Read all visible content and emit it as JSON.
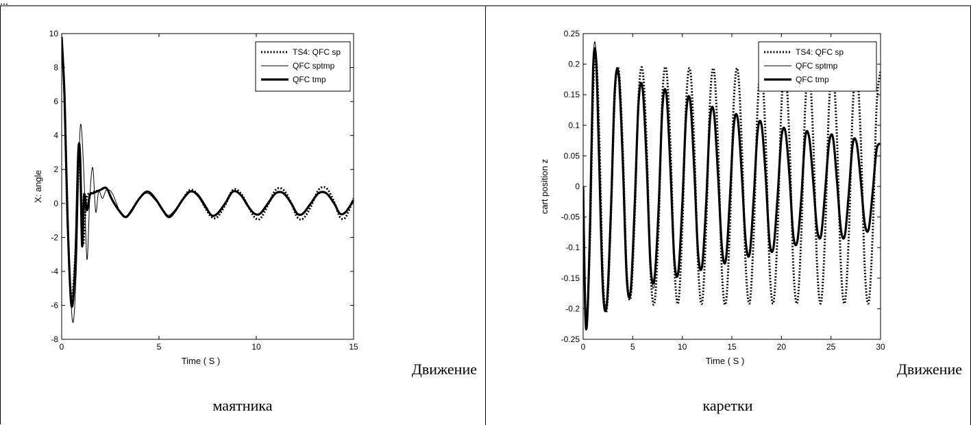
{
  "header_fragment": "...",
  "captions": {
    "left_line1": "Движение",
    "left_line2": "маятника",
    "right_line1": "Движение",
    "right_line2": "каретки"
  },
  "colors": {
    "line": "#000000",
    "background": "#ffffff"
  },
  "chart_data": [
    {
      "type": "line",
      "title": "",
      "xlabel": "Time ( S )",
      "ylabel": "X: angle",
      "xlim": [
        0,
        15
      ],
      "ylim": [
        -8,
        10
      ],
      "xticks": [
        0,
        5,
        10,
        15
      ],
      "yticks": [
        -8,
        -6,
        -4,
        -2,
        0,
        2,
        4,
        6,
        8,
        10
      ],
      "grid": false,
      "legend_position": "top-right",
      "series": [
        {
          "name": "TS4: QFC sp",
          "style": "dotted",
          "x": [
            0,
            0.15,
            0.3,
            0.5,
            0.7,
            0.9,
            1.0,
            1.1,
            1.2,
            1.3,
            1.5,
            1.7,
            2.0,
            2.3,
            2.6,
            3.0,
            3.3,
            3.6,
            4.0,
            4.4,
            4.8,
            5.2,
            5.5,
            5.8,
            6.2,
            6.6,
            7.0,
            7.4,
            7.7,
            8.0,
            8.4,
            8.8,
            9.2,
            9.6,
            9.9,
            10.2,
            10.6,
            11.0,
            11.4,
            11.8,
            12.1,
            12.4,
            12.8,
            13.2,
            13.6,
            14.0,
            14.3,
            14.6,
            15.0
          ],
          "y": [
            9.8,
            6.0,
            -1.0,
            -5.5,
            -3.0,
            2.8,
            0.5,
            -2.4,
            -0.8,
            0.4,
            0.6,
            0.7,
            0.8,
            0.9,
            0.2,
            -0.5,
            -0.8,
            -0.4,
            0.3,
            0.7,
            0.3,
            -0.4,
            -0.8,
            -0.5,
            0.2,
            0.8,
            0.5,
            -0.3,
            -0.8,
            -0.8,
            -0.1,
            0.8,
            0.6,
            -0.2,
            -0.8,
            -0.9,
            -0.1,
            0.8,
            0.8,
            0.0,
            -0.8,
            -0.9,
            -0.2,
            0.8,
            0.9,
            0.1,
            -0.8,
            -0.8,
            0.3
          ]
        },
        {
          "name": "QFC sptmp",
          "style": "thin",
          "x": [
            0,
            0.15,
            0.3,
            0.55,
            0.75,
            0.9,
            1.0,
            1.15,
            1.3,
            1.45,
            1.6,
            1.75,
            1.9,
            2.1,
            2.3,
            2.6,
            3.0,
            3.3,
            3.6,
            4.0,
            4.4,
            4.8,
            5.2,
            5.5,
            5.8,
            6.2,
            6.6,
            7.0,
            7.4,
            7.7,
            8.0,
            8.4,
            8.8,
            9.2,
            9.6,
            9.9,
            10.2,
            10.6,
            11.0,
            11.4,
            11.8,
            12.1,
            12.4,
            12.8,
            13.2,
            13.6,
            14.0,
            14.3,
            14.6,
            15.0
          ],
          "y": [
            9.9,
            6.5,
            -0.5,
            -6.9,
            -4.0,
            3.0,
            4.6,
            1.5,
            -3.3,
            0.5,
            2.1,
            -0.5,
            0.7,
            0.3,
            0.8,
            0.6,
            -0.5,
            -0.8,
            -0.5,
            0.3,
            0.6,
            0.2,
            -0.4,
            -0.7,
            -0.4,
            0.2,
            0.7,
            0.4,
            -0.3,
            -0.7,
            -0.6,
            0.0,
            0.7,
            0.5,
            -0.2,
            -0.6,
            -0.6,
            0.0,
            0.6,
            0.6,
            0.0,
            -0.6,
            -0.6,
            0.0,
            0.6,
            0.6,
            0.0,
            -0.6,
            -0.5,
            0.2
          ]
        },
        {
          "name": "QFC tmp",
          "style": "thick",
          "x": [
            0,
            0.15,
            0.3,
            0.5,
            0.7,
            0.85,
            0.95,
            1.05,
            1.15,
            1.3,
            1.45,
            1.6,
            1.8,
            2.0,
            2.3,
            2.6,
            3.0,
            3.3,
            3.6,
            4.0,
            4.4,
            4.8,
            5.2,
            5.5,
            5.8,
            6.2,
            6.6,
            7.0,
            7.4,
            7.7,
            8.0,
            8.4,
            8.8,
            9.2,
            9.6,
            9.9,
            10.2,
            10.6,
            11.0,
            11.4,
            11.8,
            12.1,
            12.4,
            12.8,
            13.2,
            13.6,
            14.0,
            14.3,
            14.6,
            15.0
          ],
          "y": [
            9.8,
            6.2,
            -0.8,
            -6.0,
            -3.5,
            2.9,
            2.7,
            -2.5,
            0.5,
            -0.4,
            0.5,
            0.6,
            0.7,
            0.8,
            0.9,
            0.2,
            -0.5,
            -0.8,
            -0.4,
            0.3,
            0.7,
            0.3,
            -0.4,
            -0.8,
            -0.5,
            0.2,
            0.7,
            0.5,
            -0.2,
            -0.7,
            -0.6,
            0.0,
            0.7,
            0.5,
            -0.2,
            -0.6,
            -0.6,
            0.0,
            0.6,
            0.6,
            0.0,
            -0.6,
            -0.6,
            0.0,
            0.6,
            0.6,
            0.0,
            -0.6,
            -0.5,
            0.2
          ]
        }
      ]
    },
    {
      "type": "line",
      "title": "",
      "xlabel": "Time ( S )",
      "ylabel": "cart position z",
      "xlim": [
        0,
        30
      ],
      "ylim": [
        -0.25,
        0.25
      ],
      "xticks": [
        0,
        5,
        10,
        15,
        20,
        25,
        30
      ],
      "yticks": [
        -0.25,
        -0.2,
        -0.15,
        -0.1,
        -0.05,
        0,
        0.05,
        0.1,
        0.15,
        0.2,
        0.25
      ],
      "grid": false,
      "legend_position": "top-right",
      "series": [
        {
          "name": "TS4: QFC sp",
          "style": "dotted",
          "x": [
            0.0,
            0.2,
            0.4,
            0.7,
            1.0,
            1.3,
            1.6,
            2.0,
            2.4,
            2.8,
            3.2,
            3.6,
            4.0,
            4.4,
            4.8,
            5.2,
            5.6,
            6.0,
            6.4,
            6.8,
            7.2,
            7.6,
            8.0,
            8.4,
            8.8,
            9.2,
            9.6,
            10.0,
            10.4,
            10.8,
            11.2,
            11.6,
            12.0,
            12.4,
            12.8,
            13.2,
            13.6,
            14.0,
            14.4,
            14.8,
            15.2,
            15.6,
            16.0,
            16.4,
            16.8,
            17.2,
            17.6,
            18.0,
            18.4,
            18.8,
            19.2,
            19.6,
            20.0,
            20.4,
            20.8,
            21.2,
            21.6,
            22.0,
            22.4,
            22.8,
            23.2,
            23.6,
            24.0,
            24.4,
            24.8,
            25.2,
            25.6,
            26.0,
            26.4,
            26.8,
            27.2,
            27.6,
            28.0,
            28.4,
            28.8,
            29.2,
            29.6,
            30.0
          ],
          "y": [
            0.0,
            -0.19,
            -0.21,
            -0.08,
            0.15,
            0.21,
            0.1,
            -0.15,
            -0.2,
            -0.05,
            0.15,
            0.19,
            0.06,
            -0.14,
            -0.18,
            -0.05,
            0.15,
            0.19,
            0.07,
            -0.14,
            -0.19,
            -0.07,
            0.15,
            0.19,
            0.07,
            -0.13,
            -0.19,
            -0.07,
            0.14,
            0.19,
            0.07,
            -0.13,
            -0.19,
            -0.07,
            0.14,
            0.19,
            0.07,
            -0.14,
            -0.19,
            -0.07,
            0.14,
            0.19,
            0.07,
            -0.13,
            -0.19,
            -0.08,
            0.13,
            0.19,
            0.08,
            -0.13,
            -0.19,
            -0.08,
            0.13,
            0.19,
            0.08,
            -0.13,
            -0.19,
            -0.08,
            0.13,
            0.19,
            0.08,
            -0.13,
            -0.19,
            -0.08,
            0.13,
            0.19,
            0.08,
            -0.13,
            -0.19,
            -0.08,
            0.13,
            0.19,
            0.08,
            -0.13,
            -0.19,
            -0.08,
            0.13,
            0.19
          ]
        },
        {
          "name": "QFC sptmp",
          "style": "thin",
          "x": [
            0.0,
            0.2,
            0.4,
            0.7,
            1.0,
            1.3,
            1.6,
            2.0,
            2.4,
            2.8,
            3.2,
            3.6,
            4.0,
            4.4,
            4.8,
            5.2,
            5.6,
            6.0,
            6.4,
            6.8,
            7.2,
            7.6,
            8.0,
            8.4,
            8.8,
            9.2,
            9.6,
            10.0,
            10.4,
            10.8,
            11.2,
            11.6,
            12.0,
            12.4,
            12.8,
            13.2,
            13.6,
            14.0,
            14.4,
            14.8,
            15.2,
            15.6,
            16.0,
            16.4,
            16.8,
            17.2,
            17.6,
            18.0,
            18.4,
            18.8,
            19.2,
            19.6,
            20.0,
            20.4,
            20.8,
            21.2,
            21.6,
            22.0,
            22.4,
            22.8,
            23.2,
            23.6,
            24.0,
            24.4,
            24.8,
            25.2,
            25.6,
            26.0,
            26.4,
            26.8,
            27.2,
            27.6,
            28.0,
            28.4,
            28.8,
            29.2,
            29.6,
            30.0
          ],
          "y": [
            0.0,
            -0.2,
            -0.22,
            -0.05,
            0.2,
            0.22,
            0.05,
            -0.17,
            -0.19,
            -0.04,
            0.15,
            0.18,
            0.04,
            -0.15,
            -0.17,
            -0.03,
            0.14,
            0.16,
            0.04,
            -0.13,
            -0.16,
            -0.04,
            0.13,
            0.15,
            0.03,
            -0.12,
            -0.14,
            -0.03,
            0.12,
            0.14,
            0.03,
            -0.11,
            -0.13,
            -0.03,
            0.11,
            0.12,
            0.02,
            -0.1,
            -0.12,
            -0.02,
            0.1,
            0.11,
            0.02,
            -0.09,
            -0.11,
            -0.02,
            0.09,
            0.1,
            0.02,
            -0.09,
            -0.1,
            -0.02,
            0.08,
            0.09,
            0.02,
            -0.08,
            -0.09,
            -0.02,
            0.08,
            0.08,
            0.01,
            -0.07,
            -0.08,
            -0.01,
            0.07,
            0.08,
            0.01,
            -0.07,
            -0.08,
            -0.01,
            0.07,
            0.07,
            0.01,
            -0.06,
            -0.07,
            -0.01,
            0.06,
            0.07
          ]
        },
        {
          "name": "QFC tmp",
          "style": "thick",
          "x": [
            0.0,
            0.2,
            0.4,
            0.7,
            1.0,
            1.3,
            1.6,
            2.0,
            2.4,
            2.8,
            3.2,
            3.6,
            4.0,
            4.4,
            4.8,
            5.2,
            5.6,
            6.0,
            6.4,
            6.8,
            7.2,
            7.6,
            8.0,
            8.4,
            8.8,
            9.2,
            9.6,
            10.0,
            10.4,
            10.8,
            11.2,
            11.6,
            12.0,
            12.4,
            12.8,
            13.2,
            13.6,
            14.0,
            14.4,
            14.8,
            15.2,
            15.6,
            16.0,
            16.4,
            16.8,
            17.2,
            17.6,
            18.0,
            18.4,
            18.8,
            19.2,
            19.6,
            20.0,
            20.4,
            20.8,
            21.2,
            21.6,
            22.0,
            22.4,
            22.8,
            23.2,
            23.6,
            24.0,
            24.4,
            24.8,
            25.2,
            25.6,
            26.0,
            26.4,
            26.8,
            27.2,
            27.6,
            28.0,
            28.4,
            28.8,
            29.2,
            29.6,
            30.0
          ],
          "y": [
            0.0,
            -0.2,
            -0.22,
            -0.06,
            0.19,
            0.21,
            0.05,
            -0.17,
            -0.19,
            -0.04,
            0.16,
            0.18,
            0.04,
            -0.15,
            -0.17,
            -0.03,
            0.14,
            0.16,
            0.04,
            -0.13,
            -0.15,
            -0.04,
            0.13,
            0.15,
            0.03,
            -0.12,
            -0.14,
            -0.03,
            0.12,
            0.14,
            0.03,
            -0.11,
            -0.13,
            -0.03,
            0.11,
            0.12,
            0.02,
            -0.1,
            -0.12,
            -0.02,
            0.1,
            0.11,
            0.02,
            -0.09,
            -0.11,
            -0.02,
            0.09,
            0.1,
            0.02,
            -0.09,
            -0.1,
            -0.02,
            0.08,
            0.09,
            0.02,
            -0.08,
            -0.09,
            -0.02,
            0.08,
            0.08,
            0.01,
            -0.07,
            -0.08,
            -0.01,
            0.07,
            0.08,
            0.01,
            -0.07,
            -0.08,
            -0.01,
            0.07,
            0.07,
            0.01,
            -0.06,
            -0.07,
            -0.01,
            0.06,
            0.07
          ]
        }
      ]
    }
  ]
}
